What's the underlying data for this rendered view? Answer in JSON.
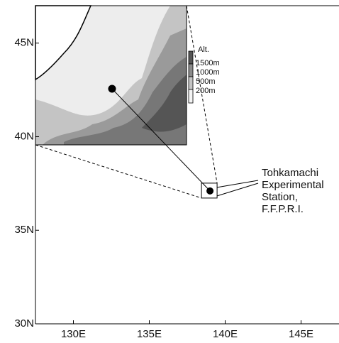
{
  "map": {
    "xlim": [
      127.5,
      147.5
    ],
    "ylim": [
      30,
      47
    ],
    "xticks": [
      {
        "value": 130,
        "label": "130E"
      },
      {
        "value": 135,
        "label": "135E"
      },
      {
        "value": 140,
        "label": "140E"
      },
      {
        "value": 145,
        "label": "145E"
      }
    ],
    "yticks": [
      {
        "value": 30,
        "label": "30N"
      },
      {
        "value": 35,
        "label": "35N"
      },
      {
        "value": 40,
        "label": "40N"
      },
      {
        "value": 45,
        "label": "45N"
      }
    ],
    "station": {
      "lon": 139.0,
      "lat": 37.1,
      "label": [
        "Tohkamachi",
        "Experimental",
        "Station,",
        "F.F.P.R.I."
      ]
    },
    "legend": {
      "title": "Alt.",
      "labels": [
        "1500m",
        "1000m",
        "500m",
        "200m"
      ]
    }
  }
}
